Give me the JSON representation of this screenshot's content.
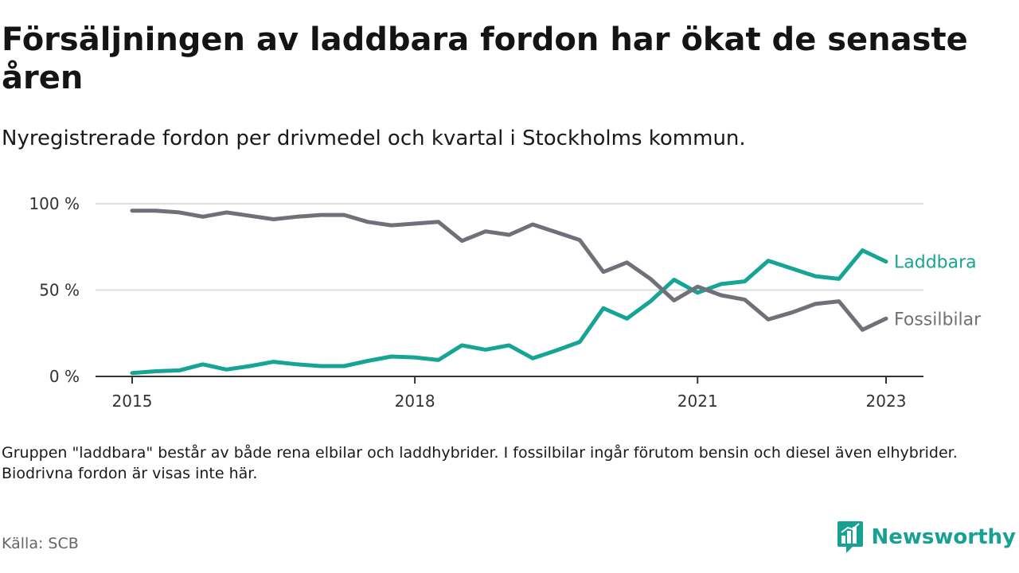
{
  "title": "Försäljningen av laddbara fordon har ökat de senaste åren",
  "subtitle": "Nyregistrerade fordon per drivmedel och kvartal i Stockholms kommun.",
  "note": "Gruppen \"laddbara\" består av både rena elbilar och laddhybrider. I fossilbilar ingår förutom bensin och diesel även elhybrider. Biodrivna fordon är visas inte här.",
  "source": "Källa: SCB",
  "brand": "Newsworthy",
  "colors": {
    "laddbara": "#16a496",
    "fossilbilar": "#707078",
    "brand": "#16a193",
    "gridline": "#dddddd",
    "axis": "#333333"
  },
  "chart_data": {
    "type": "line",
    "title": "Försäljningen av laddbara fordon har ökat de senaste åren",
    "xlabel": "",
    "ylabel": "",
    "ylim": [
      0,
      100
    ],
    "yticks": [
      0,
      50,
      100
    ],
    "ytick_labels": [
      "0 %",
      "50 %",
      "100 %"
    ],
    "xtick_values": [
      2015,
      2018,
      2021,
      2023
    ],
    "xtick_labels": [
      "2015",
      "2018",
      "2021",
      "2023"
    ],
    "grid": true,
    "x": [
      2015.0,
      2015.25,
      2015.5,
      2015.75,
      2016.0,
      2016.25,
      2016.5,
      2016.75,
      2017.0,
      2017.25,
      2017.5,
      2017.75,
      2018.0,
      2018.25,
      2018.5,
      2018.75,
      2019.0,
      2019.25,
      2019.5,
      2019.75,
      2020.0,
      2020.25,
      2020.5,
      2020.75,
      2021.0,
      2021.25,
      2021.5,
      2021.75,
      2022.0,
      2022.25,
      2022.5,
      2022.75,
      2023.0
    ],
    "series": [
      {
        "name": "Laddbara",
        "key": "laddbara",
        "values": [
          2,
          3,
          3.5,
          7,
          4,
          6,
          8.5,
          7,
          6,
          6,
          9,
          11.5,
          11,
          9.5,
          18,
          15.5,
          18,
          10.5,
          15,
          20,
          39.5,
          33.5,
          43.5,
          56,
          48.5,
          53.5,
          55,
          67,
          62.5,
          58,
          56.5,
          73,
          66.5
        ]
      },
      {
        "name": "Fossilbilar",
        "key": "fossilbilar",
        "values": [
          96,
          96,
          95,
          92.5,
          95,
          93,
          91,
          92.5,
          93.5,
          93.5,
          89.5,
          87.5,
          88.5,
          89.5,
          78.5,
          84,
          82,
          88,
          83.5,
          79,
          60.5,
          66,
          56.5,
          44,
          52,
          47,
          44.5,
          33,
          37,
          42,
          43.5,
          27,
          33.5
        ]
      }
    ]
  }
}
